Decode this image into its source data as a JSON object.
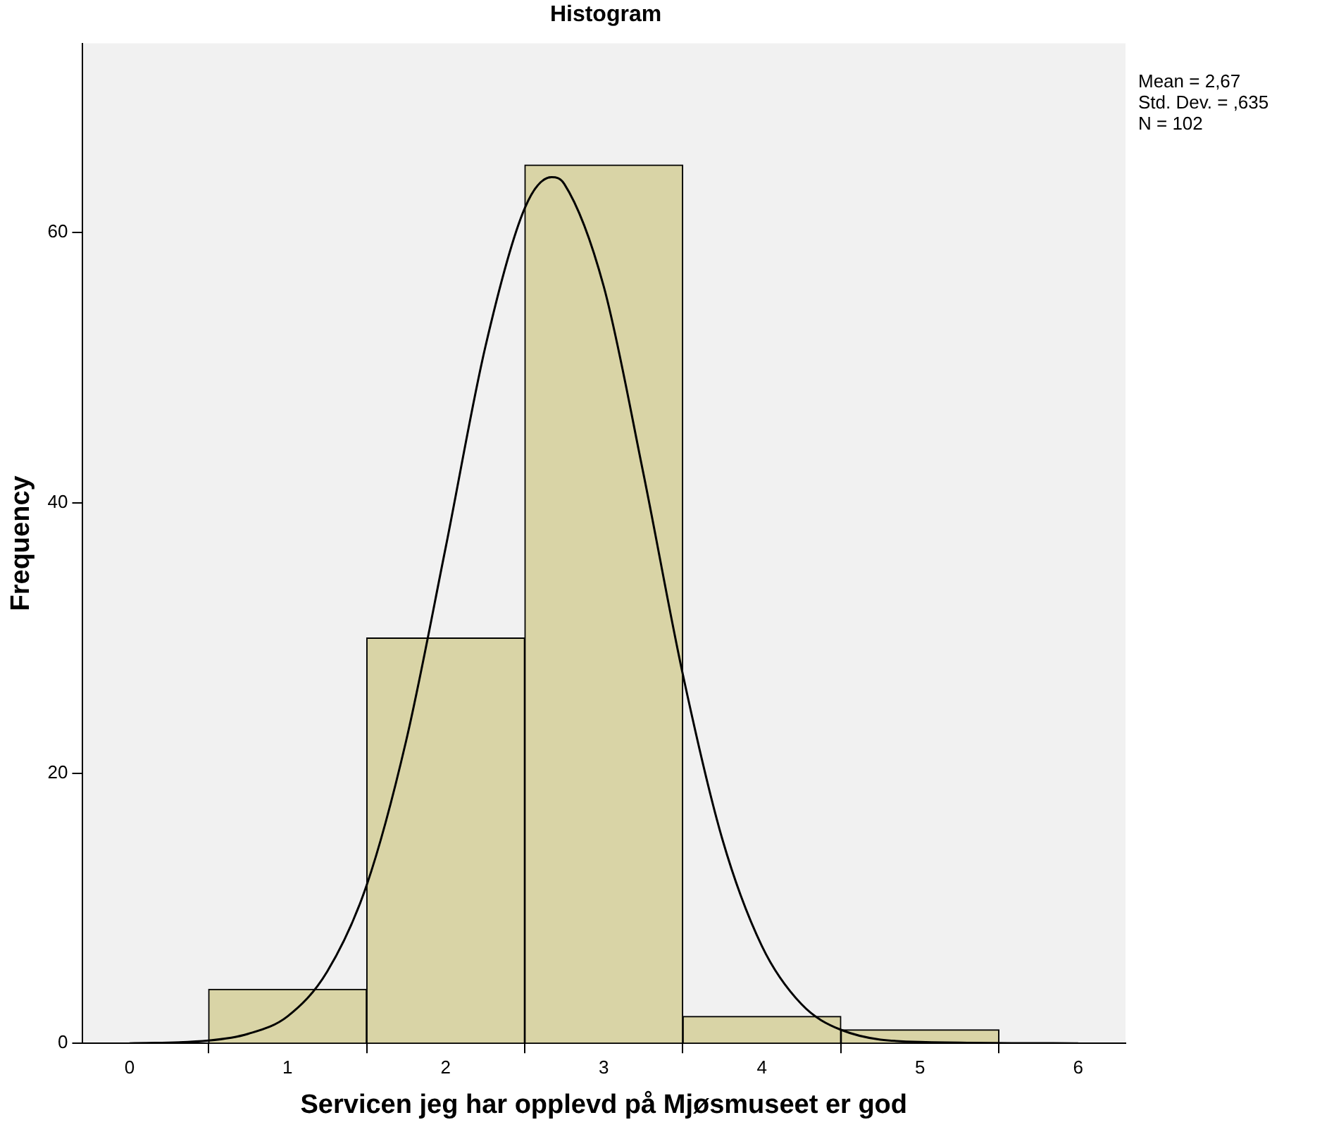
{
  "chart_data": {
    "type": "histogram",
    "title": "Histogram",
    "xlabel": "Servicen jeg har opplevd på Mjøsmuseet er god",
    "ylabel": "Frequency",
    "bins": [
      0.5,
      1.5,
      2.5,
      3.5,
      4.5,
      5.5
    ],
    "values": [
      4,
      30,
      65,
      2,
      1
    ],
    "color": "#d9d4a6",
    "series": [
      {
        "type": "line",
        "color": "#000000",
        "x": [
          0,
          0.5,
          0.75,
          1,
          1.25,
          1.5,
          1.75,
          2,
          2.25,
          2.5,
          2.67,
          2.75,
          3,
          3.25,
          3.5,
          3.75,
          4,
          4.25,
          4.5,
          5,
          6
        ],
        "values": [
          0,
          0.2,
          0.7,
          2,
          5.3,
          11.7,
          22.4,
          36.7,
          51.5,
          61.8,
          64.1,
          63.6,
          56,
          42.2,
          27.3,
          15.1,
          7.2,
          2.9,
          1,
          0.1,
          0
        ]
      }
    ],
    "marker": "none",
    "grid": false,
    "legend": false,
    "xlim": [
      -0.3,
      6.3
    ],
    "xticks": [
      0,
      1,
      2,
      3,
      4,
      5,
      6
    ],
    "ylim": [
      0,
      74
    ],
    "yticks": [
      0,
      20,
      40,
      60
    ],
    "annotations": [
      "Mean = 2,67",
      "Std. Dev. = ,635",
      "N = 102"
    ]
  }
}
